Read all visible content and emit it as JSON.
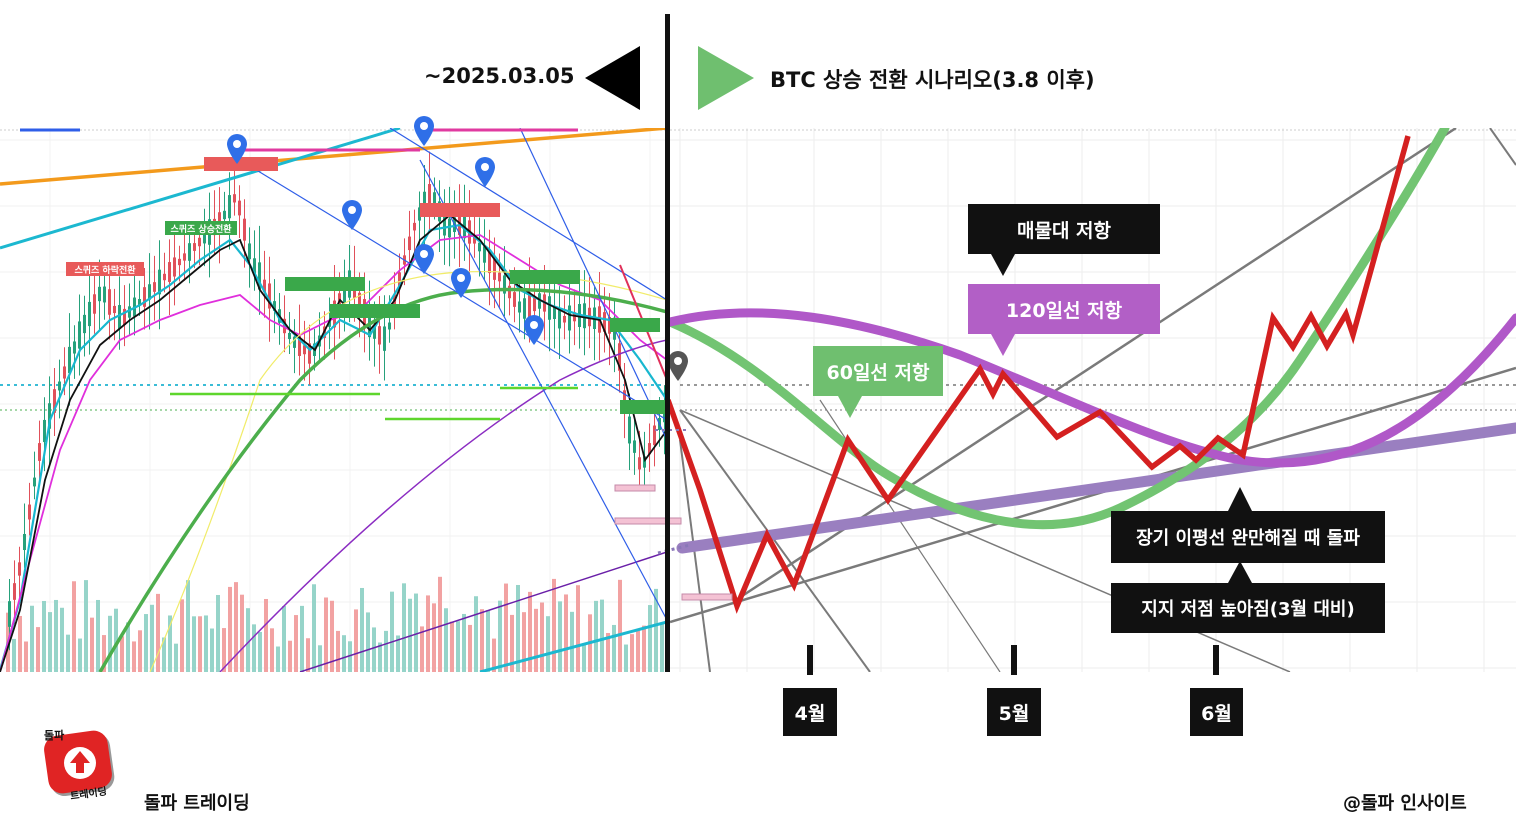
{
  "header": {
    "date_label": "~2025.03.05",
    "scenario_title": "BTC 상승 전환 시나리오(3.8 이후)"
  },
  "chart_data": {
    "type": "line",
    "title": "BTC 상승 전환 시나리오(3.8 이후)",
    "history_end_label": "~2025.03.05",
    "month_ticks": [
      "4월",
      "5월",
      "6월"
    ],
    "annotations": {
      "ma60": "60일선 저항",
      "ma120": "120일선 저항",
      "supply": "매물대 저항",
      "breakout": "장기 이평선 완만해질 때 돌파",
      "higher_low": "지지 저점 높아짐(3월 대비)"
    },
    "chart_labels": {
      "squeeze_up": "스퀴즈 상승전환",
      "squeeze_down": "스퀴즈 하락전환"
    },
    "colors": {
      "scenario_path": "#d42020",
      "ma60": "#72c472",
      "ma120": "#b058c8",
      "long_ma": "#9a7fc0",
      "trend_line": "#7a7a7a",
      "arrow_left": "#000000",
      "arrow_right": "#6fbf6f"
    }
  },
  "footer": {
    "logo_top": "돌파",
    "logo_bottom": "트레이딩",
    "brand": "돌파 트레이딩",
    "credit": "@돌파 인사이트"
  }
}
